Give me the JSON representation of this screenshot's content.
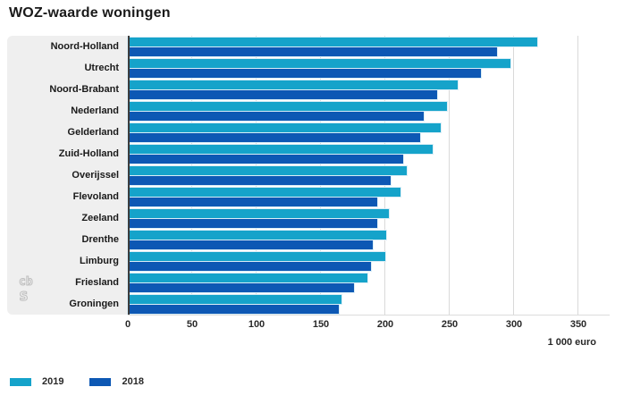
{
  "title": "WOZ-waarde woningen",
  "legend": {
    "items": [
      {
        "label": "2019",
        "color": "#15a3ca"
      },
      {
        "label": "2018",
        "color": "#0d58b4"
      }
    ]
  },
  "axis": {
    "ticks": [
      0,
      50,
      100,
      150,
      200,
      250,
      300,
      350
    ],
    "unit_label": "1 000 euro"
  },
  "watermark_icon": "cbs-logo",
  "colors": {
    "series_2019": "#15a3ca",
    "series_2018": "#0d58b4",
    "label_panel": "#efefef",
    "gridline": "#d9d9d9",
    "axis_line": "#3c3c3c",
    "text": "#1a1a1a"
  },
  "chart_data": {
    "type": "bar",
    "orientation": "horizontal",
    "title": "WOZ-waarde woningen",
    "xlabel": "1 000 euro",
    "xlim": [
      0,
      350
    ],
    "grid": true,
    "legend_position": "bottom-left",
    "categories": [
      "Noord-Holland",
      "Utrecht",
      "Noord-Brabant",
      "Nederland",
      "Gelderland",
      "Zuid-Holland",
      "Overijssel",
      "Flevoland",
      "Zeeland",
      "Drenthe",
      "Limburg",
      "Friesland",
      "Groningen"
    ],
    "series": [
      {
        "name": "2019",
        "color": "#15a3ca",
        "values": [
          318,
          297,
          256,
          248,
          243,
          237,
          217,
          212,
          203,
          201,
          200,
          186,
          166
        ]
      },
      {
        "name": "2018",
        "color": "#0d58b4",
        "values": [
          287,
          274,
          240,
          230,
          227,
          214,
          204,
          194,
          194,
          190,
          189,
          176,
          164
        ]
      }
    ]
  }
}
